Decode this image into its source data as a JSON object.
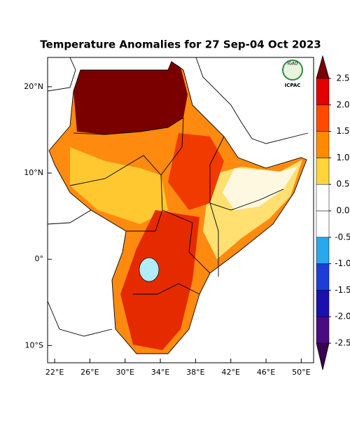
{
  "map": {
    "title": "Temperature Anomalies for 27 Sep-04 Oct 2023",
    "logo": {
      "top": "IGAD",
      "bottom": "ICPAC"
    },
    "xlim": [
      21.2,
      51.4
    ],
    "ylim": [
      -12,
      23.4
    ],
    "xticks": [
      {
        "value": 22,
        "label": "22°E"
      },
      {
        "value": 26,
        "label": "26°E"
      },
      {
        "value": 30,
        "label": "30°E"
      },
      {
        "value": 34,
        "label": "34°E"
      },
      {
        "value": 38,
        "label": "38°E"
      },
      {
        "value": 42,
        "label": "42°E"
      },
      {
        "value": 46,
        "label": "46°E"
      },
      {
        "value": 50,
        "label": "50°E"
      }
    ],
    "yticks": [
      {
        "value": 20,
        "label": "20°N"
      },
      {
        "value": 10,
        "label": "10°N"
      },
      {
        "value": 0,
        "label": "0°"
      },
      {
        "value": -10,
        "label": "10°S"
      }
    ],
    "colorbar": {
      "lim": [
        -2.5,
        2.5
      ],
      "ticks": [
        -2.5,
        {
          "value": -2,
          "label": "-2.0"
        },
        -1.5,
        {
          "value": -1,
          "label": "-1.0"
        },
        -0.5,
        {
          "value": 0,
          "label": "0.0"
        },
        0.5,
        {
          "value": 1,
          "label": "1.0"
        },
        1.5,
        {
          "value": 2,
          "label": "2.0"
        },
        2.5
      ],
      "colors": [
        "#3a0050",
        "#4a0a80",
        "#1a10b0",
        "#1e3cd8",
        "#2aa8ec",
        "#ffffff",
        "#ffffff",
        "#ffd53a",
        "#ff8c00",
        "#ff4a00",
        "#e20000",
        "#7a0000"
      ]
    }
  }
}
